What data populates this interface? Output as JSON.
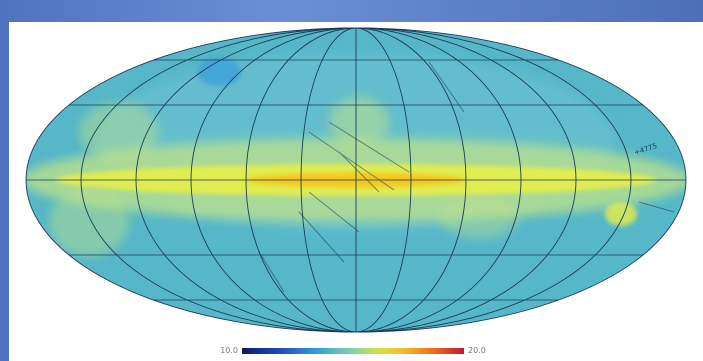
{
  "map": {
    "projection": "mollweide",
    "palette": {
      "background": "#ffffff",
      "sky_base": "#56b7c9",
      "sky_light": "#6fc4d2",
      "plane_mid": "#bfe28a",
      "plane_inner": "#e7ef4a",
      "plane_core": "#f7c51f",
      "grid_line": "#1b3d57",
      "cold_spot": "#3e9fde"
    },
    "annotation_text": "+4775"
  },
  "colorbar": {
    "min_label": "10.0",
    "max_label": "20.0"
  }
}
